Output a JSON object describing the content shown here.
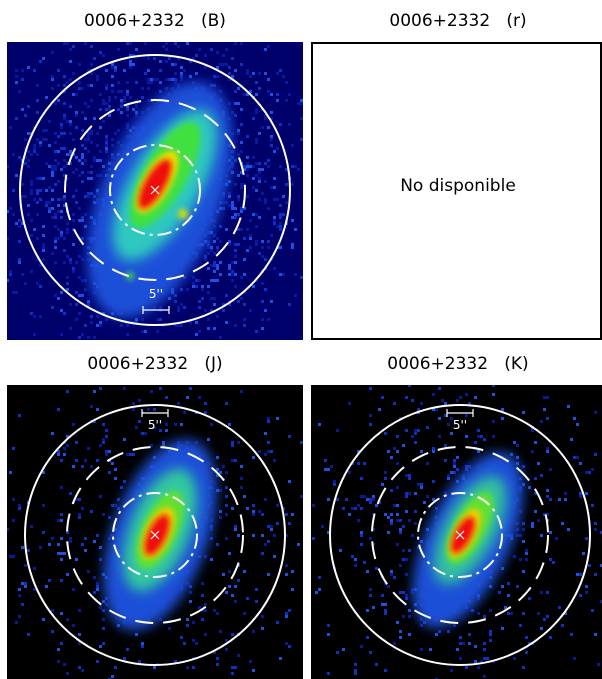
{
  "panels": [
    {
      "title": "0006+2332   (B)",
      "scale_label": "5''"
    },
    {
      "title": "0006+2332   (r)",
      "message": "No disponible"
    },
    {
      "title": "0006+2332   (J)",
      "scale_label": "5''"
    },
    {
      "title": "0006+2332   (K)",
      "scale_label": "5''"
    }
  ]
}
